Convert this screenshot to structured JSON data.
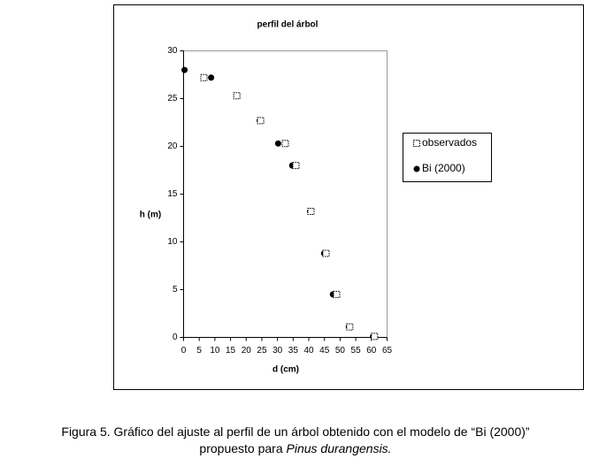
{
  "chart_data": {
    "type": "scatter",
    "title": "perfil del árbol",
    "x_label": "d (cm)",
    "y_label": "h (m)",
    "xlim": [
      0,
      65
    ],
    "xticks": [
      0,
      5,
      10,
      15,
      20,
      25,
      30,
      35,
      40,
      45,
      50,
      55,
      60,
      65
    ],
    "ylim": [
      0,
      30
    ],
    "yticks": [
      0,
      5,
      10,
      15,
      20,
      25,
      30
    ],
    "legend": "right",
    "series": [
      {
        "name": "observados",
        "color": "#000000",
        "marker": "square",
        "x": [
          6.5,
          17,
          24.6,
          32.5,
          35.9,
          40.7,
          45.5,
          48.9,
          53.1,
          61
        ],
        "values": [
          27.2,
          25.3,
          22.7,
          20.3,
          18,
          13.2,
          8.8,
          4.5,
          1.1,
          0.1
        ]
      },
      {
        "name": "Bi (2000)",
        "color": "#000000",
        "marker": "circle",
        "x": [
          0.3,
          8.8,
          17,
          24.3,
          30.2,
          34.7,
          40.4,
          44.9,
          47.7,
          52.8,
          60.5
        ],
        "values": [
          28,
          27.2,
          25.3,
          22.7,
          20.3,
          18,
          13.2,
          8.8,
          4.5,
          1.1,
          0.1
        ]
      }
    ]
  },
  "caption": {
    "line1": "Figura 5. Gráfico del ajuste al perfil de un árbol obtenido con el modelo de “Bi (2000)”",
    "line2": "propuesto para",
    "species": "Pinus durangensis."
  }
}
